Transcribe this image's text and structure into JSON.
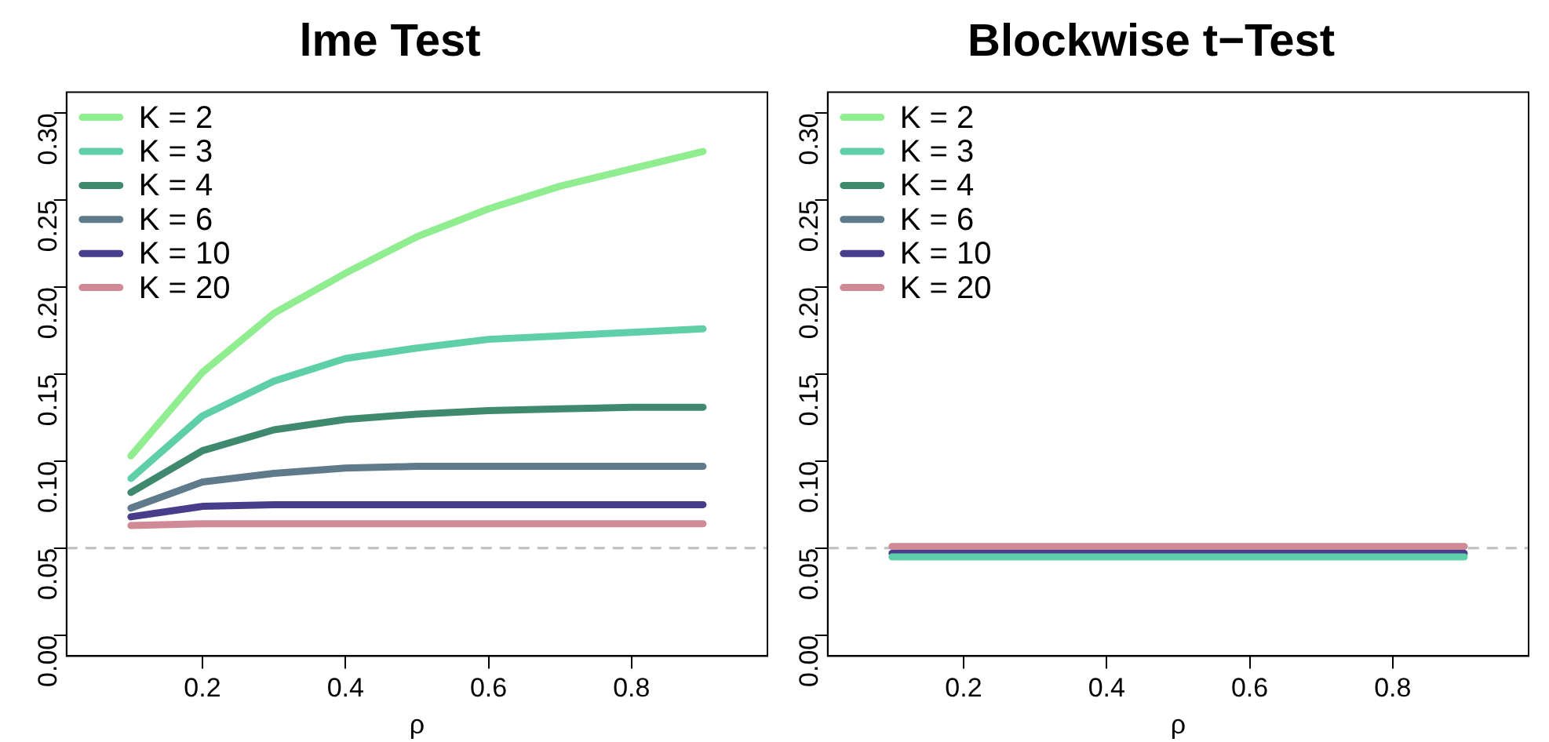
{
  "chart_data": [
    {
      "type": "line",
      "title": "lme Test",
      "xlabel": "ρ",
      "x": [
        0.1,
        0.2,
        0.3,
        0.4,
        0.5,
        0.6,
        0.7,
        0.8,
        0.9
      ],
      "xlim": [
        0.01,
        0.99
      ],
      "xticks": [
        0.2,
        0.4,
        0.6,
        0.8
      ],
      "ylim": [
        -0.012,
        0.312
      ],
      "yticks": [
        {
          "value": 0,
          "label": "0.00"
        },
        0.05,
        {
          "value": 0.1,
          "label": "0.10"
        },
        0.15,
        {
          "value": 0.2,
          "label": "0.20"
        },
        0.25,
        {
          "value": 0.3,
          "label": "0.30"
        }
      ],
      "grid": false,
      "legend": "top left",
      "marker": "none",
      "line_style": "solid",
      "ref_lines": [
        {
          "axis": "y",
          "value": 0.05,
          "color": "#bebebe",
          "line_style": "dashed"
        }
      ],
      "series": [
        {
          "name": "K = 2",
          "color": "#90ee90",
          "values": [
            0.103,
            0.151,
            0.185,
            0.208,
            0.229,
            0.245,
            0.258,
            0.268,
            0.278
          ]
        },
        {
          "name": "K = 3",
          "color": "#5fcfa8",
          "values": [
            0.09,
            0.126,
            0.146,
            0.159,
            0.165,
            0.17,
            0.172,
            0.174,
            0.176
          ]
        },
        {
          "name": "K = 4",
          "color": "#3f8a6e",
          "values": [
            0.082,
            0.106,
            0.118,
            0.124,
            0.127,
            0.129,
            0.13,
            0.131,
            0.131
          ]
        },
        {
          "name": "K = 6",
          "color": "#5f7a8a",
          "values": [
            0.073,
            0.088,
            0.093,
            0.096,
            0.097,
            0.097,
            0.097,
            0.097,
            0.097
          ]
        },
        {
          "name": "K = 10",
          "color": "#483d8b",
          "values": [
            0.068,
            0.074,
            0.075,
            0.075,
            0.075,
            0.075,
            0.075,
            0.075,
            0.075
          ]
        },
        {
          "name": "K = 20",
          "color": "#d08a96",
          "values": [
            0.063,
            0.064,
            0.064,
            0.064,
            0.064,
            0.064,
            0.064,
            0.064,
            0.064
          ]
        }
      ]
    },
    {
      "type": "line",
      "title": "Blockwise t−Test",
      "xlabel": "ρ",
      "x": [
        0.1,
        0.2,
        0.3,
        0.4,
        0.5,
        0.6,
        0.7,
        0.8,
        0.9
      ],
      "xlim": [
        0.01,
        0.99
      ],
      "xticks": [
        0.2,
        0.4,
        0.6,
        0.8
      ],
      "ylim": [
        -0.012,
        0.312
      ],
      "yticks": [
        {
          "value": 0,
          "label": "0.00"
        },
        0.05,
        {
          "value": 0.1,
          "label": "0.10"
        },
        0.15,
        {
          "value": 0.2,
          "label": "0.20"
        },
        0.25,
        {
          "value": 0.3,
          "label": "0.30"
        }
      ],
      "grid": false,
      "legend": "top left",
      "marker": "none",
      "line_style": "solid",
      "ref_lines": [
        {
          "axis": "y",
          "value": 0.05,
          "color": "#bebebe",
          "line_style": "dashed"
        }
      ],
      "series": [
        {
          "name": "K = 2",
          "color": "#90ee90",
          "values": [
            null,
            null,
            null,
            null,
            null,
            null,
            null,
            null,
            null
          ]
        },
        {
          "name": "K = 3",
          "color": "#5fcfa8",
          "values": [
            0.045,
            0.045,
            0.045,
            0.045,
            0.045,
            0.045,
            0.045,
            0.045,
            0.045
          ]
        },
        {
          "name": "K = 4",
          "color": "#3f8a6e",
          "values": [
            null,
            null,
            null,
            null,
            null,
            null,
            null,
            null,
            null
          ]
        },
        {
          "name": "K = 6",
          "color": "#5f7a8a",
          "values": [
            null,
            null,
            null,
            null,
            null,
            null,
            null,
            null,
            null
          ]
        },
        {
          "name": "K = 10",
          "color": "#483d8b",
          "values": [
            0.047,
            0.047,
            0.047,
            0.047,
            0.047,
            0.047,
            0.047,
            0.047,
            0.047
          ]
        },
        {
          "name": "K = 20",
          "color": "#d08a96",
          "values": [
            0.051,
            0.051,
            0.051,
            0.051,
            0.051,
            0.051,
            0.051,
            0.051,
            0.051
          ]
        }
      ]
    }
  ]
}
